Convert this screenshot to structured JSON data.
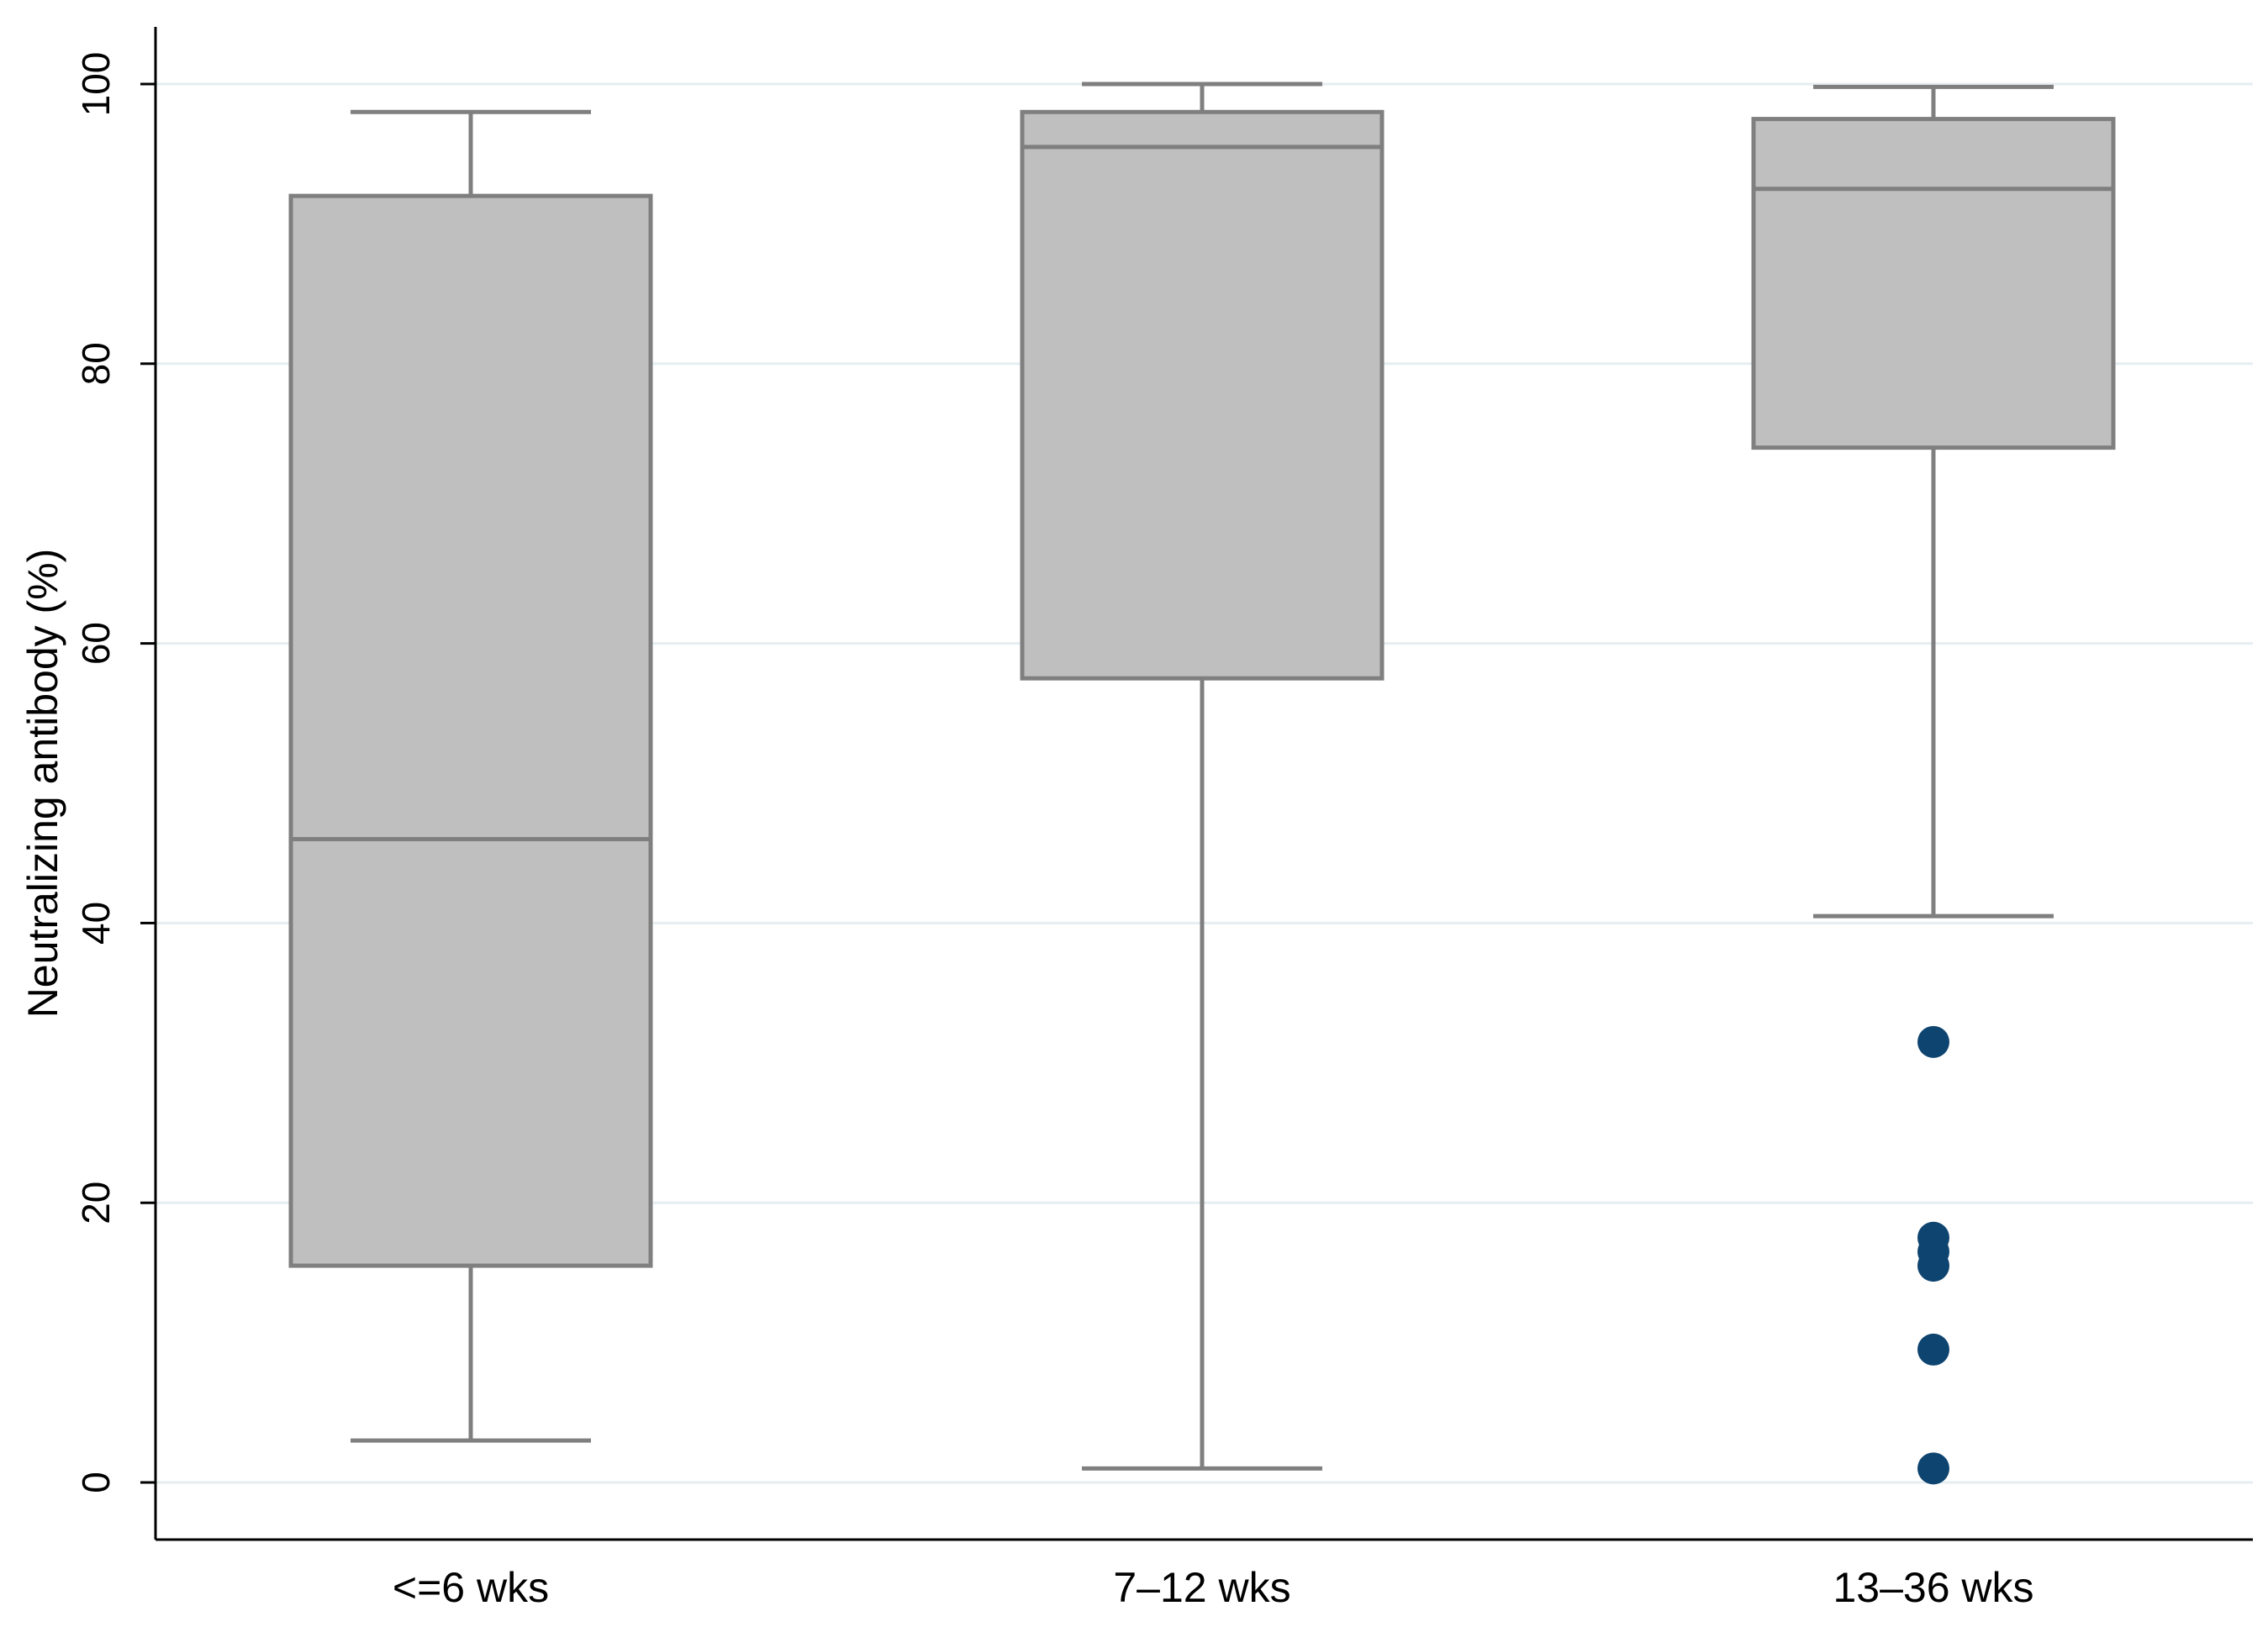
{
  "chart_data": {
    "type": "box",
    "title": "",
    "xlabel": "",
    "ylabel": "Neutralizing antibody (%)",
    "ylim": [
      0,
      100
    ],
    "yticks": [
      0,
      20,
      40,
      60,
      80,
      100
    ],
    "grid": true,
    "categories": [
      "<=6 wks",
      "7–12 wks",
      "13–36 wks"
    ],
    "boxes": [
      {
        "category": "<=6 wks",
        "whisker_low": 3,
        "q1": 15.5,
        "median": 46,
        "q3": 92,
        "whisker_high": 98,
        "outliers": []
      },
      {
        "category": "7–12 wks",
        "whisker_low": 1,
        "q1": 57.5,
        "median": 95.5,
        "q3": 98,
        "whisker_high": 100,
        "outliers": []
      },
      {
        "category": "13–36 wks",
        "whisker_low": 40.5,
        "q1": 74,
        "median": 92.5,
        "q3": 97.5,
        "whisker_high": 99.8,
        "outliers": [
          31.5,
          17.5,
          16.5,
          15.5,
          9.5,
          1
        ]
      }
    ],
    "colors": {
      "box_fill": "#bfbfbf",
      "box_stroke": "#7f7f7f",
      "outlier": "#0e4470",
      "grid": "#e6eef1"
    }
  }
}
